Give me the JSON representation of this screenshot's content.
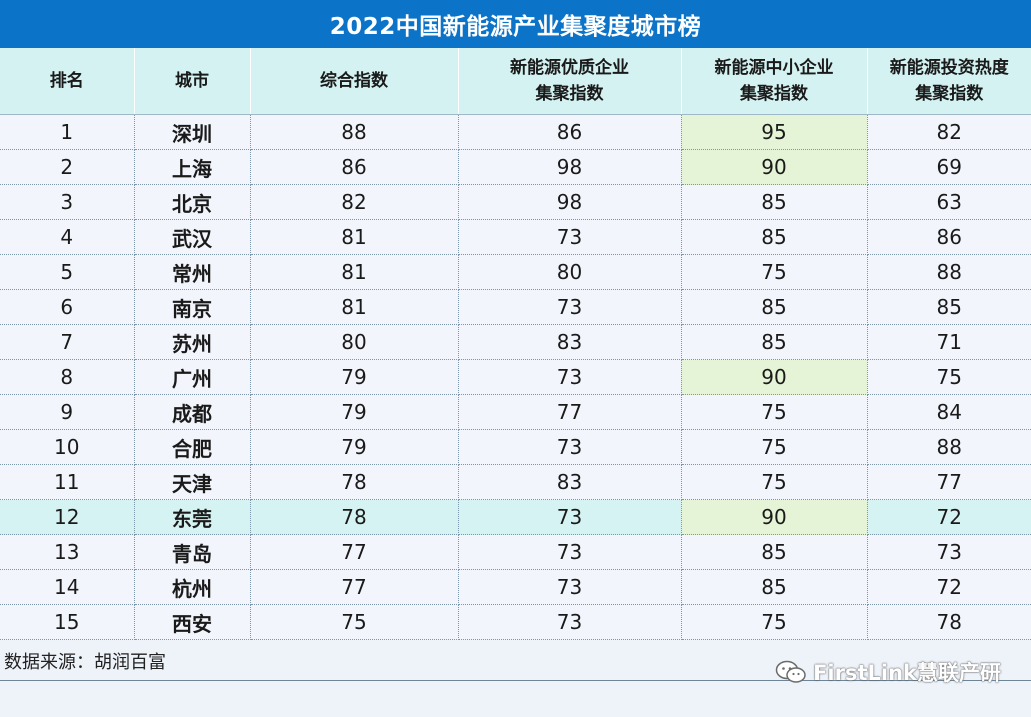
{
  "title": "2022中国新能源产业集聚度城市榜",
  "headers": {
    "rank": "排名",
    "city": "城市",
    "composite": "综合指数",
    "quality_l1": "新能源优质企业",
    "quality_l2": "集聚指数",
    "sme_l1": "新能源中小企业",
    "sme_l2": "集聚指数",
    "invest_l1": "新能源投资热度",
    "invest_l2": "集聚指数"
  },
  "rows": [
    {
      "rank": "1",
      "city": "深圳",
      "composite": "88",
      "quality": "86",
      "sme": "95",
      "invest": "82"
    },
    {
      "rank": "2",
      "city": "上海",
      "composite": "86",
      "quality": "98",
      "sme": "90",
      "invest": "69"
    },
    {
      "rank": "3",
      "city": "北京",
      "composite": "82",
      "quality": "98",
      "sme": "85",
      "invest": "63"
    },
    {
      "rank": "4",
      "city": "武汉",
      "composite": "81",
      "quality": "73",
      "sme": "85",
      "invest": "86"
    },
    {
      "rank": "5",
      "city": "常州",
      "composite": "81",
      "quality": "80",
      "sme": "75",
      "invest": "88"
    },
    {
      "rank": "6",
      "city": "南京",
      "composite": "81",
      "quality": "73",
      "sme": "85",
      "invest": "85"
    },
    {
      "rank": "7",
      "city": "苏州",
      "composite": "80",
      "quality": "83",
      "sme": "85",
      "invest": "71"
    },
    {
      "rank": "8",
      "city": "广州",
      "composite": "79",
      "quality": "73",
      "sme": "90",
      "invest": "75"
    },
    {
      "rank": "9",
      "city": "成都",
      "composite": "79",
      "quality": "77",
      "sme": "75",
      "invest": "84"
    },
    {
      "rank": "10",
      "city": "合肥",
      "composite": "79",
      "quality": "73",
      "sme": "75",
      "invest": "88"
    },
    {
      "rank": "11",
      "city": "天津",
      "composite": "78",
      "quality": "83",
      "sme": "75",
      "invest": "77"
    },
    {
      "rank": "12",
      "city": "东莞",
      "composite": "78",
      "quality": "73",
      "sme": "90",
      "invest": "72"
    },
    {
      "rank": "13",
      "city": "青岛",
      "composite": "77",
      "quality": "73",
      "sme": "85",
      "invest": "73"
    },
    {
      "rank": "14",
      "city": "杭州",
      "composite": "77",
      "quality": "73",
      "sme": "85",
      "invest": "72"
    },
    {
      "rank": "15",
      "city": "西安",
      "composite": "75",
      "quality": "73",
      "sme": "75",
      "invest": "78"
    }
  ],
  "source": "数据来源：胡润百富",
  "watermark": "FirstLink慧联产研",
  "watermark_icon": "wechat-icon",
  "colors": {
    "title_bg": "#0b73c8",
    "header_bg": "#d4f2f2",
    "body_bg": "#f2f6fc",
    "highlight_row": "#d6f3f3",
    "highlight_cell": "#e5f4d6"
  }
}
